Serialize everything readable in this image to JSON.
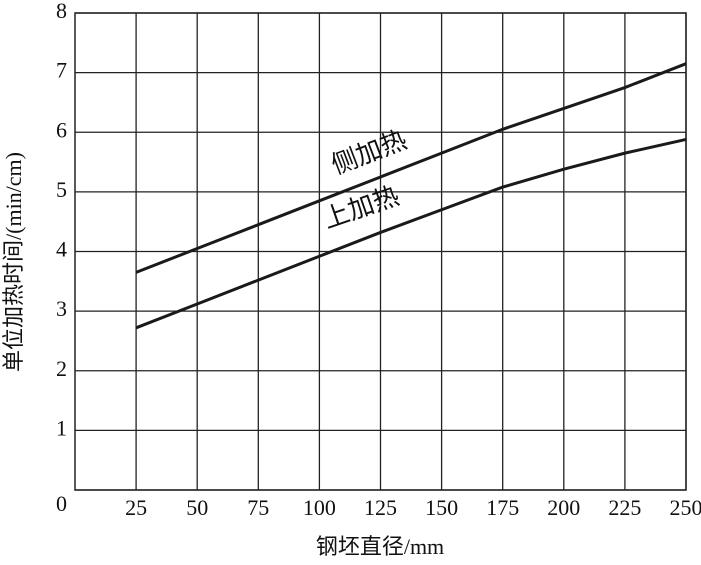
{
  "chart_data": {
    "type": "line",
    "x_label": "钢坯直径/mm",
    "y_label": "单位加热时间/(min/cm)",
    "x": [
      25,
      50,
      75,
      100,
      125,
      150,
      175,
      200,
      225,
      250
    ],
    "series": [
      {
        "name": "侧加热",
        "color": "#1a1a1a",
        "values": [
          3.65,
          4.05,
          4.45,
          4.85,
          5.25,
          5.65,
          6.05,
          6.4,
          6.75,
          7.15
        ]
      },
      {
        "name": "上加热",
        "color": "#1a1a1a",
        "values": [
          2.72,
          3.12,
          3.52,
          3.92,
          4.32,
          4.7,
          5.08,
          5.38,
          5.65,
          5.88
        ]
      }
    ],
    "xlim": [
      0,
      250
    ],
    "xticks": [
      25,
      50,
      75,
      100,
      125,
      150,
      175,
      200,
      225,
      250
    ],
    "ylim": [
      0,
      8
    ],
    "yticks": [
      0,
      1,
      2,
      3,
      4,
      5,
      6,
      7,
      8
    ],
    "grid": true
  }
}
